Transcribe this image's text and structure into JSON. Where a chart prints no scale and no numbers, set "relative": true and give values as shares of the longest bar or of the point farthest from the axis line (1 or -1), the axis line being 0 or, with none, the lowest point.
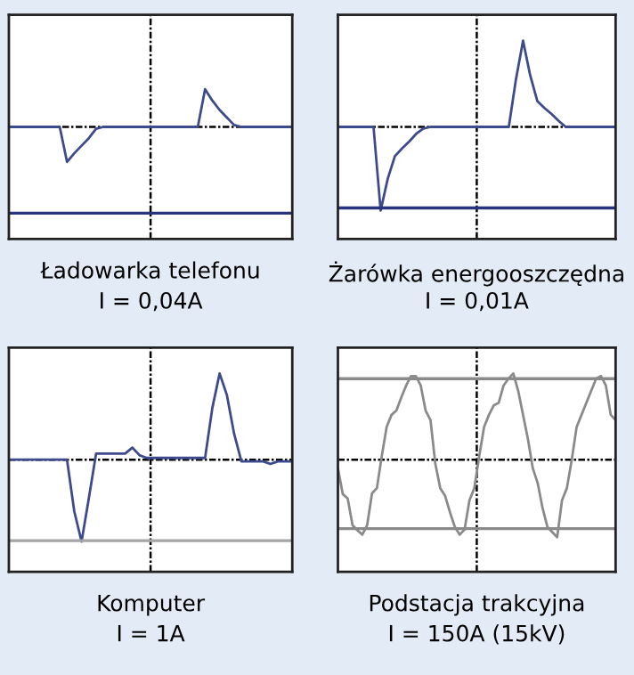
{
  "chart_data": [
    {
      "type": "line",
      "title": "Ładowarka telefonu",
      "subtitle": "I = 0,04A",
      "relative": true,
      "categories": [
        null,
        null,
        null,
        null,
        null,
        null,
        null,
        null,
        null,
        null,
        null,
        null,
        null,
        null,
        null,
        null,
        null,
        null,
        null,
        null,
        null,
        null,
        null,
        null,
        null,
        null,
        null,
        null,
        null,
        null,
        null,
        null,
        null,
        null,
        null,
        null,
        null,
        null,
        null,
        null
      ],
      "series": [
        {
          "color": "#3d4a8c",
          "values": [
            0,
            0,
            0,
            0,
            0,
            0,
            0,
            0,
            -0.93,
            -0.7,
            -0.5,
            -0.3,
            -0.05,
            0,
            0,
            0,
            0,
            0,
            0,
            0,
            0,
            0,
            0,
            0,
            0,
            0,
            0,
            1.0,
            0.7,
            0.45,
            0.25,
            0.05,
            0,
            0,
            0,
            0,
            0,
            0,
            0,
            0
          ]
        }
      ],
      "ref_lines": [
        {
          "axis": "y",
          "value": -2.29,
          "color": "#27337a"
        }
      ]
    },
    {
      "type": "line",
      "title": "Żarówka energooszczędna",
      "subtitle": "I = 0,01A",
      "relative": true,
      "categories": [
        null,
        null,
        null,
        null,
        null,
        null,
        null,
        null,
        null,
        null,
        null,
        null,
        null,
        null,
        null,
        null,
        null,
        null,
        null,
        null,
        null,
        null,
        null,
        null,
        null,
        null,
        null,
        null,
        null,
        null,
        null,
        null,
        null,
        null,
        null,
        null,
        null,
        null,
        null,
        null
      ],
      "series": [
        {
          "color": "#3d4a8c",
          "values": [
            0,
            0,
            0,
            0,
            0,
            0,
            -0.97,
            -0.6,
            -0.34,
            -0.25,
            -0.17,
            -0.08,
            -0.02,
            0,
            0,
            0,
            0,
            0,
            0,
            0,
            0,
            0,
            0,
            0,
            0,
            0.55,
            1.0,
            0.6,
            0.3,
            0.22,
            0.15,
            0.07,
            0,
            0,
            0,
            0,
            0,
            0,
            0,
            0
          ]
        }
      ],
      "ref_lines": [
        {
          "axis": "y",
          "value": -0.94,
          "color": "#27337a"
        }
      ]
    },
    {
      "type": "line",
      "title": "Komputer",
      "subtitle": "I = 1A",
      "relative": true,
      "categories": [
        null,
        null,
        null,
        null,
        null,
        null,
        null,
        null,
        null,
        null,
        null,
        null,
        null,
        null,
        null,
        null,
        null,
        null,
        null,
        null,
        null,
        null,
        null,
        null,
        null,
        null,
        null,
        null,
        null,
        null,
        null,
        null,
        null,
        null,
        null,
        null,
        null,
        null,
        null,
        null
      ],
      "series": [
        {
          "color": "#3d4a8c",
          "values": [
            0,
            0,
            0,
            0,
            0,
            0,
            0,
            0,
            0,
            -0.6,
            -0.95,
            -0.45,
            0.07,
            0.07,
            0.07,
            0.07,
            0.07,
            0.14,
            0.05,
            0.02,
            0.02,
            0.02,
            0.02,
            0.02,
            0.02,
            0.02,
            0.02,
            0.02,
            0.6,
            1.0,
            0.75,
            0.3,
            -0.02,
            -0.02,
            -0.02,
            -0.02,
            -0.05,
            -0.02,
            -0.02,
            -0.02
          ]
        }
      ],
      "ref_lines": [
        {
          "axis": "y",
          "value": -0.94,
          "color": "#a6a6a6"
        }
      ]
    },
    {
      "type": "line",
      "title": "Podstacja trakcyjna",
      "subtitle": "I = 150A (15kV)",
      "relative": true,
      "categories": [
        null,
        null,
        null,
        null,
        null,
        null,
        null,
        null,
        null,
        null,
        null,
        null,
        null,
        null,
        null,
        null,
        null,
        null,
        null,
        null,
        null,
        null,
        null,
        null,
        null,
        null,
        null,
        null,
        null,
        null,
        null,
        null,
        null,
        null,
        null,
        null,
        null,
        null,
        null,
        null,
        null,
        null,
        null,
        null,
        null,
        null,
        null,
        null,
        null,
        null,
        null,
        null,
        null,
        null,
        null,
        null,
        null,
        null
      ],
      "series": [
        {
          "color": "#8a8a8a",
          "values": [
            -0.1,
            -0.4,
            -0.45,
            -0.76,
            -0.82,
            -0.87,
            -0.76,
            -0.39,
            -0.33,
            0.04,
            0.38,
            0.52,
            0.57,
            0.72,
            0.86,
            0.97,
            0.97,
            0.86,
            0.57,
            0.46,
            -0.05,
            -0.33,
            -0.42,
            -0.61,
            -0.78,
            -0.87,
            -0.81,
            -0.47,
            -0.33,
            0.04,
            0.38,
            0.52,
            0.63,
            0.66,
            0.86,
            0.94,
            1.0,
            0.8,
            0.52,
            0.24,
            -0.1,
            -0.27,
            -0.56,
            -0.78,
            -0.84,
            -0.9,
            -0.47,
            -0.33,
            0.0,
            0.38,
            0.52,
            0.66,
            0.8,
            0.94,
            0.97,
            0.86,
            0.52,
            0.46
          ]
        }
      ],
      "ref_lines": [
        {
          "axis": "y",
          "value": 0.94,
          "color": "#8a8a8a"
        },
        {
          "axis": "y",
          "value": -0.8,
          "color": "#8a8a8a"
        }
      ]
    }
  ]
}
